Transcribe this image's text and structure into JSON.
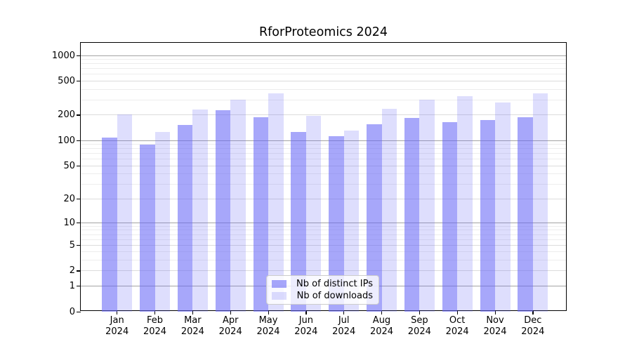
{
  "title": "RforProteomics 2024",
  "chart_data": {
    "type": "bar",
    "title": "RforProteomics 2024",
    "categories": [
      "Jan",
      "Feb",
      "Mar",
      "Apr",
      "May",
      "Jun",
      "Jul",
      "Aug",
      "Sep",
      "Oct",
      "Nov",
      "Dec"
    ],
    "x_year_label": "2024",
    "series": [
      {
        "name": "Nb of distinct IPs",
        "values": [
          109,
          89,
          154,
          229,
          189,
          126,
          113,
          156,
          184,
          165,
          175,
          190
        ]
      },
      {
        "name": "Nb of downloads",
        "values": [
          202,
          125,
          233,
          303,
          362,
          194,
          132,
          237,
          304,
          333,
          280,
          362
        ]
      }
    ],
    "yscale": "log1p",
    "ylim": [
      0,
      1420
    ],
    "ytick_values": [
      0,
      1,
      2,
      5,
      10,
      20,
      50,
      100,
      200,
      500,
      1000
    ],
    "ytick_labels": [
      "0",
      "1",
      "2",
      "5",
      "10",
      "20",
      "50",
      "100",
      "200",
      "500",
      "1000"
    ],
    "minor_grid_values": [
      3,
      4,
      6,
      7,
      8,
      9,
      30,
      40,
      60,
      70,
      80,
      90,
      300,
      400,
      600,
      700,
      800,
      900
    ],
    "grid": true,
    "legend_position": "bottom-center"
  },
  "colors": {
    "bar_distinct_ips": "rgba(103,103,246,0.58)",
    "bar_downloads": "rgba(103,103,246,0.22)",
    "grid_decade": "#a3a3a3",
    "grid_labeled": "#dcdcdc",
    "grid_minor": "#ededed",
    "axis": "#000000",
    "legend_border": "#cccccc"
  }
}
